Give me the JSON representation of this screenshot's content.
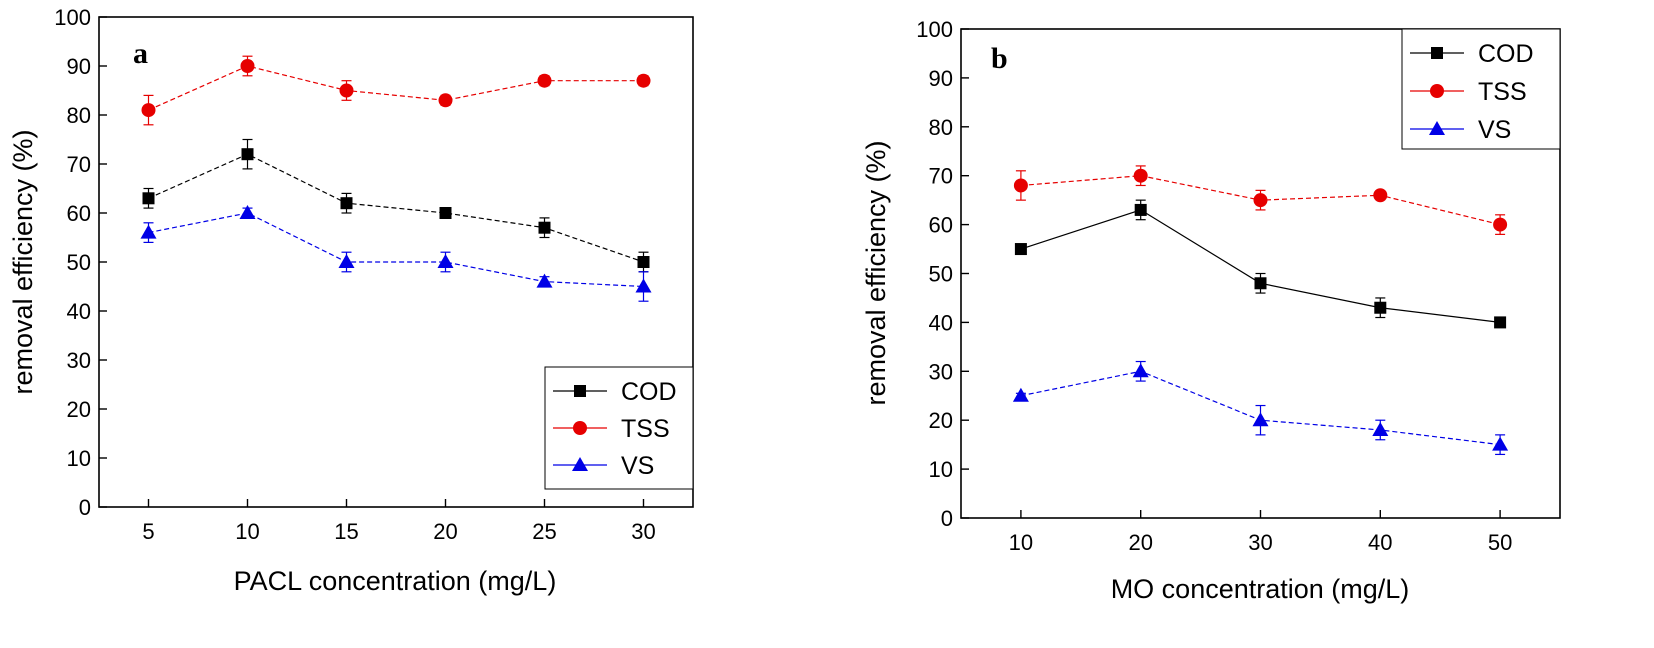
{
  "chart_data": [
    {
      "type": "line",
      "panel_label": "a",
      "xlabel": "PACL concentration (mg/L)",
      "ylabel": "removal efficiency (%)",
      "x": [
        5,
        10,
        15,
        20,
        25,
        30
      ],
      "xlim": [
        2.5,
        32.5
      ],
      "ylim": [
        0,
        100
      ],
      "xticks": [
        5,
        10,
        15,
        20,
        25,
        30
      ],
      "yticks": [
        0,
        10,
        20,
        30,
        40,
        50,
        60,
        70,
        80,
        90,
        100
      ],
      "legend_position": "bottom-right",
      "series": [
        {
          "name": "COD",
          "color": "#000000",
          "marker": "square",
          "dashed": true,
          "values": [
            63,
            72,
            62,
            60,
            57,
            50
          ],
          "errors": [
            2,
            3,
            2,
            1,
            2,
            2
          ]
        },
        {
          "name": "TSS",
          "color": "#e60000",
          "marker": "circle",
          "dashed": true,
          "values": [
            81,
            90,
            85,
            83,
            87,
            87
          ],
          "errors": [
            3,
            2,
            2,
            1,
            1,
            1
          ]
        },
        {
          "name": "VS",
          "color": "#0000e6",
          "marker": "triangle",
          "dashed": true,
          "values": [
            56,
            60,
            50,
            50,
            46,
            45
          ],
          "errors": [
            2,
            1,
            2,
            2,
            1,
            3
          ]
        }
      ]
    },
    {
      "type": "line",
      "panel_label": "b",
      "xlabel": "MO concentration (mg/L)",
      "ylabel": "removal efficiency (%)",
      "x": [
        10,
        20,
        30,
        40,
        50
      ],
      "xlim": [
        5,
        55
      ],
      "ylim": [
        0,
        100
      ],
      "xticks": [
        10,
        20,
        30,
        40,
        50
      ],
      "yticks": [
        0,
        10,
        20,
        30,
        40,
        50,
        60,
        70,
        80,
        90,
        100
      ],
      "legend_position": "top-right",
      "series": [
        {
          "name": "COD",
          "color": "#000000",
          "marker": "square",
          "dashed": false,
          "values": [
            55,
            63,
            48,
            43,
            40
          ],
          "errors": [
            0.5,
            2,
            2,
            2,
            0.5
          ]
        },
        {
          "name": "TSS",
          "color": "#e60000",
          "marker": "circle",
          "dashed": true,
          "values": [
            68,
            70,
            65,
            66,
            60
          ],
          "errors": [
            3,
            2,
            2,
            0.5,
            2
          ]
        },
        {
          "name": "VS",
          "color": "#0000e6",
          "marker": "triangle",
          "dashed": true,
          "values": [
            25,
            30,
            20,
            18,
            15
          ],
          "errors": [
            0.5,
            2,
            3,
            2,
            2
          ]
        }
      ]
    }
  ]
}
